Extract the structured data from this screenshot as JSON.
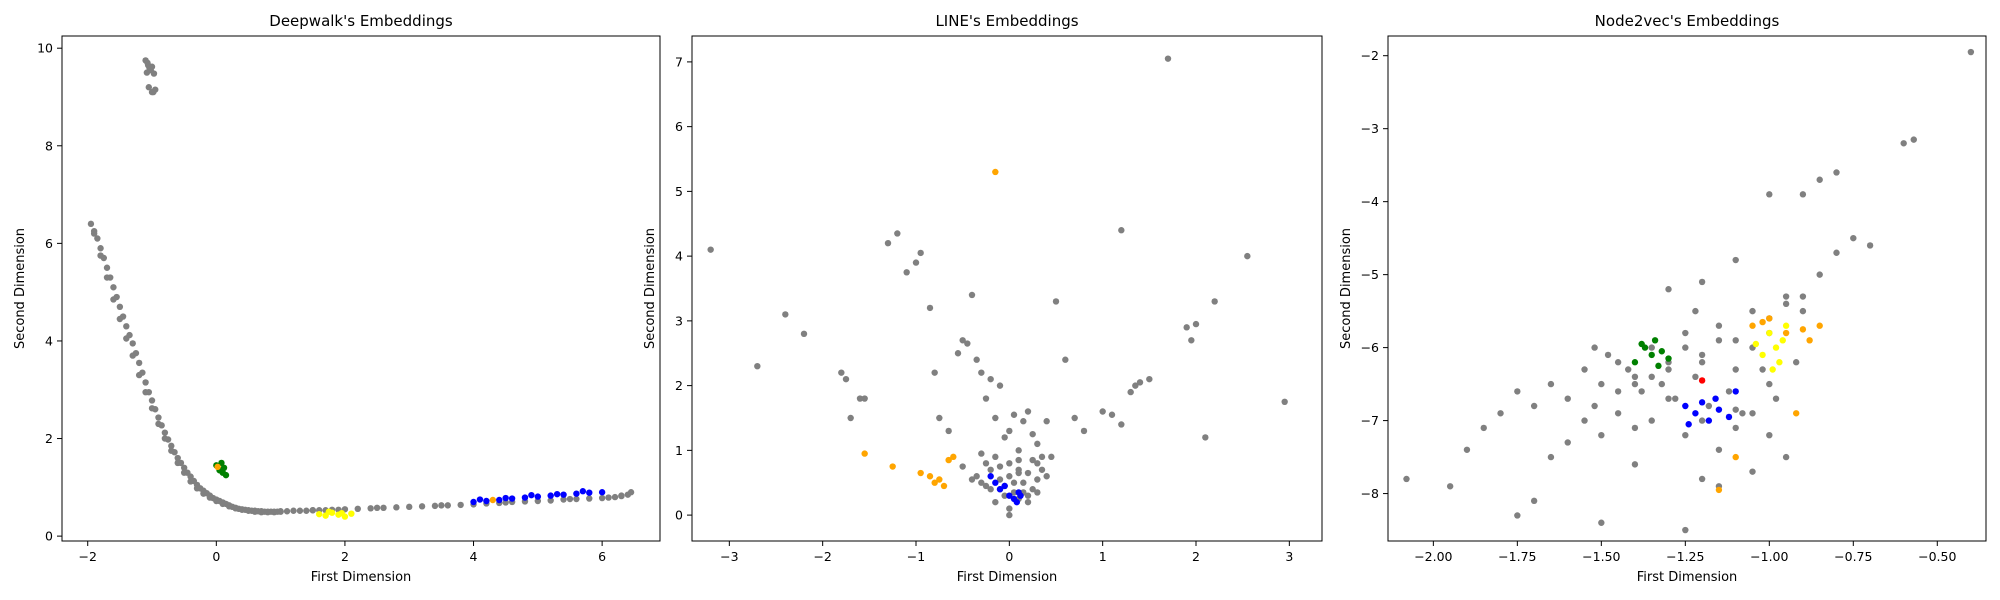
{
  "chart_data": [
    {
      "type": "scatter",
      "title": "Deepwalk's Embeddings",
      "xlabel": "First Dimension",
      "ylabel": "Second Dimension",
      "xlim": [
        -2.4,
        6.9
      ],
      "ylim": [
        -0.1,
        10.25
      ],
      "xticks": [
        -2,
        0,
        2,
        4,
        6
      ],
      "yticks": [
        0,
        2,
        4,
        6,
        8,
        10
      ],
      "grid": false,
      "series": [
        {
          "color": "#808080",
          "x": [
            -1.1,
            -1.07,
            -1.04,
            -1.08,
            -1.02,
            -1.05,
            -1.0,
            -0.98,
            -0.95,
            -1.06,
            -1.0,
            -0.97,
            -1.95,
            -1.9,
            -1.85,
            -1.8,
            -1.75,
            -1.7,
            -1.65,
            -1.6,
            -1.55,
            -1.5,
            -1.45,
            -1.4,
            -1.35,
            -1.3,
            -1.25,
            -1.2,
            -1.15,
            -1.1,
            -1.05,
            -1.0,
            -0.95,
            -0.9,
            -0.85,
            -0.8,
            -0.75,
            -0.7,
            -0.65,
            -0.6,
            -0.55,
            -0.5,
            -0.45,
            -0.4,
            -0.35,
            -0.3,
            -0.25,
            -0.2,
            -0.15,
            -0.1,
            -0.05,
            0.0,
            0.05,
            0.1,
            0.15,
            0.2,
            0.25,
            0.3,
            0.35,
            0.4,
            0.45,
            0.5,
            0.55,
            0.6,
            0.65,
            0.7,
            0.75,
            0.8,
            0.85,
            0.9,
            0.95,
            1.0,
            1.1,
            1.2,
            1.3,
            1.4,
            1.5,
            1.6,
            1.7,
            1.8,
            1.9,
            2.0,
            2.2,
            2.4,
            2.6,
            2.8,
            3.0,
            3.2,
            3.4,
            3.6,
            3.8,
            4.0,
            4.2,
            4.4,
            4.6,
            4.8,
            5.0,
            5.2,
            5.4,
            5.6,
            5.8,
            6.0,
            6.1,
            6.2,
            6.3,
            6.4,
            6.45,
            -1.9,
            -1.8,
            -1.7,
            -1.6,
            -1.5,
            -1.4,
            -1.3,
            -1.2,
            -1.1,
            -1.0,
            -0.9,
            -0.8,
            -0.7,
            -0.6,
            -0.5,
            -0.4,
            -0.3,
            -0.2,
            -0.1,
            0.0,
            0.1,
            0.2,
            0.3,
            0.4,
            0.5,
            0.6,
            0.7,
            0.8,
            0.9,
            1.0,
            1.5,
            2.5,
            3.5,
            4.5,
            5.5,
            6.3
          ],
          "y": [
            9.75,
            9.7,
            9.6,
            9.5,
            9.55,
            9.2,
            9.1,
            9.1,
            9.15,
            9.65,
            9.62,
            9.48,
            6.4,
            6.25,
            6.1,
            5.9,
            5.7,
            5.5,
            5.3,
            5.1,
            4.9,
            4.7,
            4.5,
            4.3,
            4.12,
            3.95,
            3.75,
            3.55,
            3.35,
            3.15,
            2.95,
            2.78,
            2.6,
            2.43,
            2.27,
            2.12,
            1.98,
            1.85,
            1.72,
            1.6,
            1.5,
            1.4,
            1.3,
            1.22,
            1.13,
            1.05,
            0.98,
            0.93,
            0.88,
            0.83,
            0.78,
            0.75,
            0.72,
            0.69,
            0.66,
            0.63,
            0.6,
            0.58,
            0.56,
            0.55,
            0.54,
            0.53,
            0.52,
            0.52,
            0.51,
            0.51,
            0.5,
            0.5,
            0.5,
            0.5,
            0.5,
            0.51,
            0.51,
            0.52,
            0.52,
            0.52,
            0.53,
            0.53,
            0.53,
            0.54,
            0.54,
            0.55,
            0.56,
            0.57,
            0.58,
            0.59,
            0.6,
            0.61,
            0.62,
            0.63,
            0.64,
            0.65,
            0.67,
            0.68,
            0.7,
            0.71,
            0.72,
            0.73,
            0.75,
            0.76,
            0.77,
            0.78,
            0.79,
            0.8,
            0.82,
            0.85,
            0.9,
            6.2,
            5.75,
            5.3,
            4.85,
            4.45,
            4.05,
            3.7,
            3.3,
            2.95,
            2.62,
            2.3,
            2.0,
            1.75,
            1.5,
            1.3,
            1.12,
            0.98,
            0.87,
            0.79,
            0.72,
            0.66,
            0.61,
            0.57,
            0.54,
            0.52,
            0.5,
            0.49,
            0.49,
            0.49,
            0.5,
            0.53,
            0.58,
            0.63,
            0.69,
            0.76,
            0.83
          ]
        },
        {
          "color": "#0000ff",
          "x": [
            4.0,
            4.2,
            4.4,
            4.6,
            4.8,
            5.0,
            5.2,
            5.4,
            5.6,
            5.8,
            6.0,
            4.1,
            4.5,
            4.9,
            5.3,
            5.7
          ],
          "y": [
            0.7,
            0.72,
            0.74,
            0.77,
            0.79,
            0.81,
            0.83,
            0.85,
            0.87,
            0.89,
            0.9,
            0.75,
            0.78,
            0.84,
            0.86,
            0.92
          ]
        },
        {
          "color": "#008000",
          "x": [
            0.0,
            0.05,
            0.1,
            0.15,
            0.08,
            0.12
          ],
          "y": [
            1.45,
            1.35,
            1.3,
            1.25,
            1.5,
            1.4
          ]
        },
        {
          "color": "#ffff00",
          "x": [
            1.6,
            1.7,
            1.8,
            1.9,
            2.0,
            2.1,
            1.75,
            1.95
          ],
          "y": [
            0.45,
            0.42,
            0.48,
            0.44,
            0.4,
            0.46,
            0.5,
            0.47
          ]
        },
        {
          "color": "#ffa500",
          "x": [
            0.02,
            4.3
          ],
          "y": [
            1.42,
            0.74
          ]
        }
      ]
    },
    {
      "type": "scatter",
      "title": "LINE's Embeddings",
      "xlabel": "First Dimension",
      "ylabel": "Second Dimension",
      "xlim": [
        -3.4,
        3.35
      ],
      "ylim": [
        -0.4,
        7.4
      ],
      "xticks": [
        -3,
        -2,
        -1,
        0,
        1,
        2,
        3
      ],
      "yticks": [
        0,
        1,
        2,
        3,
        4,
        5,
        6,
        7
      ],
      "grid": false,
      "series": [
        {
          "color": "#808080",
          "x": [
            -3.2,
            -2.7,
            -2.4,
            -2.2,
            -1.8,
            -1.75,
            -1.7,
            -1.6,
            -1.55,
            -1.3,
            -1.2,
            -1.1,
            -1.0,
            -0.95,
            -0.85,
            -0.8,
            -0.75,
            -0.65,
            -0.55,
            -0.5,
            -0.45,
            -0.4,
            -0.35,
            -0.3,
            -0.25,
            -0.2,
            -0.15,
            -0.1,
            -0.05,
            0.0,
            0.05,
            0.1,
            0.15,
            0.2,
            0.25,
            0.3,
            0.35,
            0.4,
            0.5,
            0.6,
            0.7,
            0.8,
            1.0,
            1.1,
            1.2,
            1.3,
            1.35,
            1.4,
            1.5,
            1.7,
            1.9,
            1.95,
            2.0,
            2.1,
            2.2,
            2.55,
            2.95,
            1.2,
            -0.15,
            0.1,
            -0.3,
            0.3,
            0.45,
            -0.5,
            -0.2,
            0.2,
            0.0,
            -0.1,
            0.15,
            -0.25,
            0.25,
            0.05,
            -0.05,
            0.1,
            -0.15,
            0.3,
            -0.35,
            0.35,
            0.0,
            0.2,
            -0.2,
            0.1,
            -0.1,
            0.05,
            -0.05,
            0.15,
            -0.3,
            0.3,
            0.0,
            0.4,
            -0.4,
            0.25,
            -0.25,
            0.1,
            -0.1,
            0.2,
            0.0
          ],
          "y": [
            4.1,
            2.3,
            3.1,
            2.8,
            2.2,
            2.1,
            1.5,
            1.8,
            1.8,
            4.2,
            4.35,
            3.75,
            3.9,
            4.05,
            3.2,
            2.2,
            1.5,
            1.3,
            2.5,
            2.7,
            2.65,
            3.4,
            2.4,
            2.2,
            1.8,
            2.1,
            1.5,
            2.0,
            1.2,
            1.3,
            1.55,
            1.0,
            1.45,
            1.6,
            1.25,
            1.1,
            0.9,
            1.45,
            3.3,
            2.4,
            1.5,
            1.3,
            1.6,
            1.55,
            1.4,
            1.9,
            2.0,
            2.05,
            2.1,
            7.05,
            2.9,
            2.7,
            2.95,
            1.2,
            3.3,
            4.0,
            1.75,
            4.4,
            0.9,
            0.85,
            0.95,
            0.8,
            0.9,
            0.75,
            0.7,
            0.65,
            0.6,
            0.55,
            0.5,
            0.45,
            0.4,
            0.35,
            0.3,
            0.25,
            0.2,
            0.55,
            0.6,
            0.7,
            0.8,
            0.3,
            0.4,
            0.65,
            0.75,
            0.5,
            0.45,
            0.35,
            0.5,
            0.35,
            0.1,
            0.6,
            0.55,
            0.85,
            0.8,
            0.7,
            0.4,
            0.2,
            0.0
          ]
        },
        {
          "color": "#0000ff",
          "x": [
            -0.15,
            -0.1,
            0.0,
            0.05,
            0.1,
            -0.05,
            0.08,
            0.12,
            -0.2
          ],
          "y": [
            0.5,
            0.4,
            0.3,
            0.25,
            0.35,
            0.45,
            0.2,
            0.3,
            0.6
          ]
        },
        {
          "color": "#ffa500",
          "x": [
            -0.15,
            -1.55,
            -1.25,
            -0.95,
            -0.75,
            -0.7,
            -0.65,
            -0.6,
            -0.8,
            -0.85
          ],
          "y": [
            5.3,
            0.95,
            0.75,
            0.65,
            0.55,
            0.45,
            0.85,
            0.9,
            0.5,
            0.6
          ]
        }
      ]
    },
    {
      "type": "scatter",
      "title": "Node2vec's Embeddings",
      "xlabel": "First Dimension",
      "ylabel": "Second Dimension",
      "xlim": [
        -2.135,
        -0.355
      ],
      "ylim": [
        -8.65,
        -1.73
      ],
      "xticks": [
        -2.0,
        -1.75,
        -1.5,
        -1.25,
        -1.0,
        -0.75,
        -0.5
      ],
      "yticks": [
        -8,
        -7,
        -6,
        -5,
        -4,
        -3,
        -2
      ],
      "grid": false,
      "series": [
        {
          "color": "#808080",
          "x": [
            -2.08,
            -1.95,
            -1.9,
            -1.85,
            -1.8,
            -1.75,
            -1.7,
            -1.65,
            -1.6,
            -1.55,
            -1.5,
            -1.45,
            -1.4,
            -1.35,
            -1.3,
            -1.25,
            -1.2,
            -1.15,
            -1.1,
            -1.05,
            -1.0,
            -0.95,
            -0.9,
            -0.85,
            -0.8,
            -0.75,
            -0.7,
            -0.6,
            -0.57,
            -0.4,
            -1.52,
            -1.45,
            -1.4,
            -1.35,
            -1.3,
            -1.25,
            -1.2,
            -1.15,
            -1.1,
            -1.05,
            -1.0,
            -0.95,
            -0.9,
            -1.48,
            -1.42,
            -1.38,
            -1.32,
            -1.28,
            -1.22,
            -1.18,
            -1.12,
            -1.08,
            -1.02,
            -0.98,
            -0.92,
            -1.55,
            -1.5,
            -1.45,
            -1.4,
            -1.35,
            -1.3,
            -1.25,
            -1.2,
            -1.15,
            -1.1,
            -1.05,
            -1.0,
            -1.6,
            -1.65,
            -1.7,
            -1.75,
            -1.3,
            -1.2,
            -1.1,
            -1.0,
            -0.9,
            -0.8,
            -1.5,
            -1.25,
            -1.15,
            -1.05,
            -0.95,
            -1.4,
            -1.2,
            -1.0,
            -0.85,
            -1.22,
            -1.1,
            -1.52
          ],
          "y": [
            -7.8,
            -7.9,
            -7.4,
            -7.1,
            -6.9,
            -6.6,
            -6.8,
            -6.5,
            -6.7,
            -6.3,
            -6.5,
            -6.2,
            -6.4,
            -6.0,
            -6.3,
            -5.8,
            -6.2,
            -5.7,
            -5.9,
            -5.5,
            -5.8,
            -5.3,
            -5.5,
            -5.0,
            -4.7,
            -4.5,
            -4.6,
            -3.2,
            -3.15,
            -1.95,
            -6.8,
            -6.6,
            -6.5,
            -6.4,
            -6.2,
            -6.0,
            -6.1,
            -5.9,
            -6.3,
            -6.0,
            -5.6,
            -5.4,
            -5.3,
            -6.1,
            -6.3,
            -6.6,
            -6.5,
            -6.7,
            -6.4,
            -6.8,
            -6.6,
            -6.9,
            -6.3,
            -6.7,
            -6.2,
            -7.0,
            -7.2,
            -6.9,
            -7.1,
            -7.0,
            -6.7,
            -7.2,
            -7.0,
            -7.4,
            -7.1,
            -6.9,
            -6.5,
            -7.3,
            -7.5,
            -8.1,
            -8.3,
            -5.2,
            -5.1,
            -4.8,
            -3.9,
            -3.9,
            -3.6,
            -8.4,
            -8.5,
            -7.9,
            -7.7,
            -7.5,
            -7.6,
            -7.8,
            -7.2,
            -3.7,
            -5.5,
            -6.85,
            -6.0
          ]
        },
        {
          "color": "#008000",
          "x": [
            -1.37,
            -1.35,
            -1.32,
            -1.38,
            -1.3,
            -1.34,
            -1.4,
            -1.33
          ],
          "y": [
            -6.0,
            -6.1,
            -6.05,
            -5.95,
            -6.15,
            -5.9,
            -6.2,
            -6.25
          ]
        },
        {
          "color": "#0000ff",
          "x": [
            -1.25,
            -1.22,
            -1.18,
            -1.15,
            -1.2,
            -1.24,
            -1.16,
            -1.12,
            -1.1
          ],
          "y": [
            -6.8,
            -6.9,
            -7.0,
            -6.85,
            -6.75,
            -7.05,
            -6.7,
            -6.95,
            -6.6
          ]
        },
        {
          "color": "#ffff00",
          "x": [
            -1.0,
            -0.98,
            -0.96,
            -1.02,
            -0.95,
            -0.99,
            -0.97,
            -1.04
          ],
          "y": [
            -5.8,
            -6.0,
            -5.9,
            -6.1,
            -5.7,
            -6.3,
            -6.2,
            -5.95
          ]
        },
        {
          "color": "#ffa500",
          "x": [
            -1.05,
            -1.0,
            -0.95,
            -0.9,
            -0.85,
            -0.88,
            -1.1,
            -1.15,
            -0.92,
            -1.02
          ],
          "y": [
            -5.7,
            -5.6,
            -5.8,
            -5.75,
            -5.7,
            -5.9,
            -7.5,
            -7.95,
            -6.9,
            -5.65
          ]
        },
        {
          "color": "#ff0000",
          "x": [
            -1.2
          ],
          "y": [
            -6.45
          ]
        }
      ]
    }
  ]
}
